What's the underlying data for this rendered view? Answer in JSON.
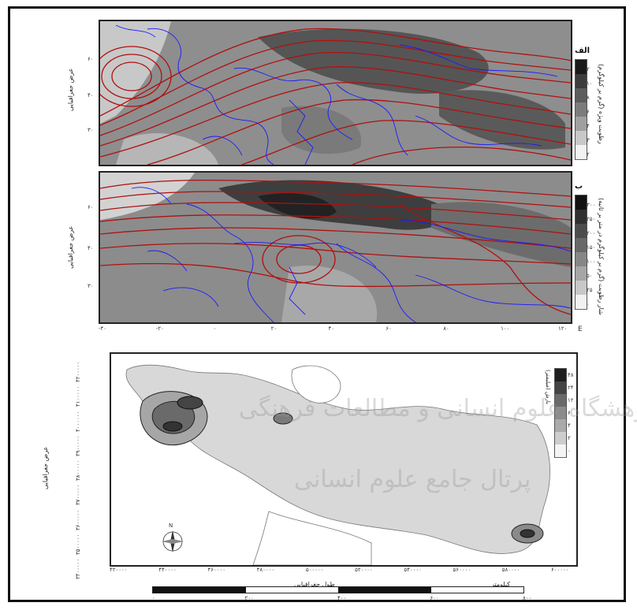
{
  "panel_a": {
    "tag": "الف",
    "y_axis_title": "عرض جغرافیایی",
    "y_ticks": [
      "۶۰",
      "۴۰",
      "۳۰"
    ],
    "legend_title": "رطوبت ویژه (گرم بر کیلوگرم)",
    "legend_labels": [
      "۲",
      "۱۰",
      "۸",
      "۶",
      "۴",
      "۳",
      "۲"
    ],
    "contour_labels": [
      "۵۰۰",
      "۵۷۰",
      "۵۸۵"
    ],
    "colors": {
      "fill": "#8a8a8a",
      "contour": "#b01010",
      "borders": "#1a1aff"
    }
  },
  "panel_b": {
    "tag": "ب",
    "y_axis_title": "عرض جغرافیایی",
    "y_ticks": [
      "۶۰",
      "۴۰",
      "۳۰"
    ],
    "legend_title": "شار رطوبت (گرم بر کیلوگرم در متر بر ثانیه)",
    "legend_labels": [
      "۳۰۰",
      "۲۵۰",
      "۲۰۰",
      "۱۵۰",
      "۱۰۰",
      "۵۰",
      "۲۵",
      "۰"
    ],
    "contour_labels": [
      "۵۴۵۰",
      "۵۵۵۰",
      "۵۶۵۰",
      "۵۷۵۰",
      "۵۶۰۰",
      "۵۷۰۰",
      "۵۴۰۰"
    ],
    "x_ticks": [
      "-۴۰",
      "-۲۰",
      "۰",
      "۲۰",
      "۴۰",
      "۶۰",
      "۸۰",
      "۱۰۰",
      "۱۲۰"
    ],
    "x_suffix": "E"
  },
  "panel_c": {
    "y_axis_title": "عرض جغرافیایی",
    "x_axis_title": "طول جغرافیایی",
    "y_ticks": [
      "۴۲۰۰۰۰۰",
      "۴۱۰۰۰۰۰",
      "۴۰۰۰۰۰۰",
      "۳۹۰۰۰۰۰",
      "۳۸۰۰۰۰۰",
      "۳۷۰۰۰۰۰",
      "۳۶۰۰۰۰۰",
      "۳۵۰۰۰۰۰",
      "۳۴۰۰۰۰۰"
    ],
    "x_ticks": [
      "۴۲۰۰۰۰",
      "۴۴۰۰۰۰",
      "۴۶۰۰۰۰",
      "۴۸۰۰۰۰",
      "۵۰۰۰۰۰",
      "۵۲۰۰۰۰",
      "۵۴۰۰۰۰",
      "۵۶۰۰۰۰",
      "۵۸۰۰۰۰",
      "۶۰۰۰۰۰"
    ],
    "legend_title": "بارش (میلیمتر)",
    "legend_labels": [
      "۴۸",
      "۲۴",
      "۱۲",
      "۶",
      "۴",
      "۲",
      "۰"
    ],
    "compass_label": "N",
    "scale_unit": "کیلومتر",
    "scale_labels": [
      "۰",
      "۲۰۰",
      "۴۰۰",
      "۶۰۰",
      "۸۰۰"
    ]
  },
  "watermark": {
    "line1": "پژوهشگاه علوم انسانی و مطالعات فرهنگی",
    "line2": "پرتال جامع علوم انسانی"
  }
}
